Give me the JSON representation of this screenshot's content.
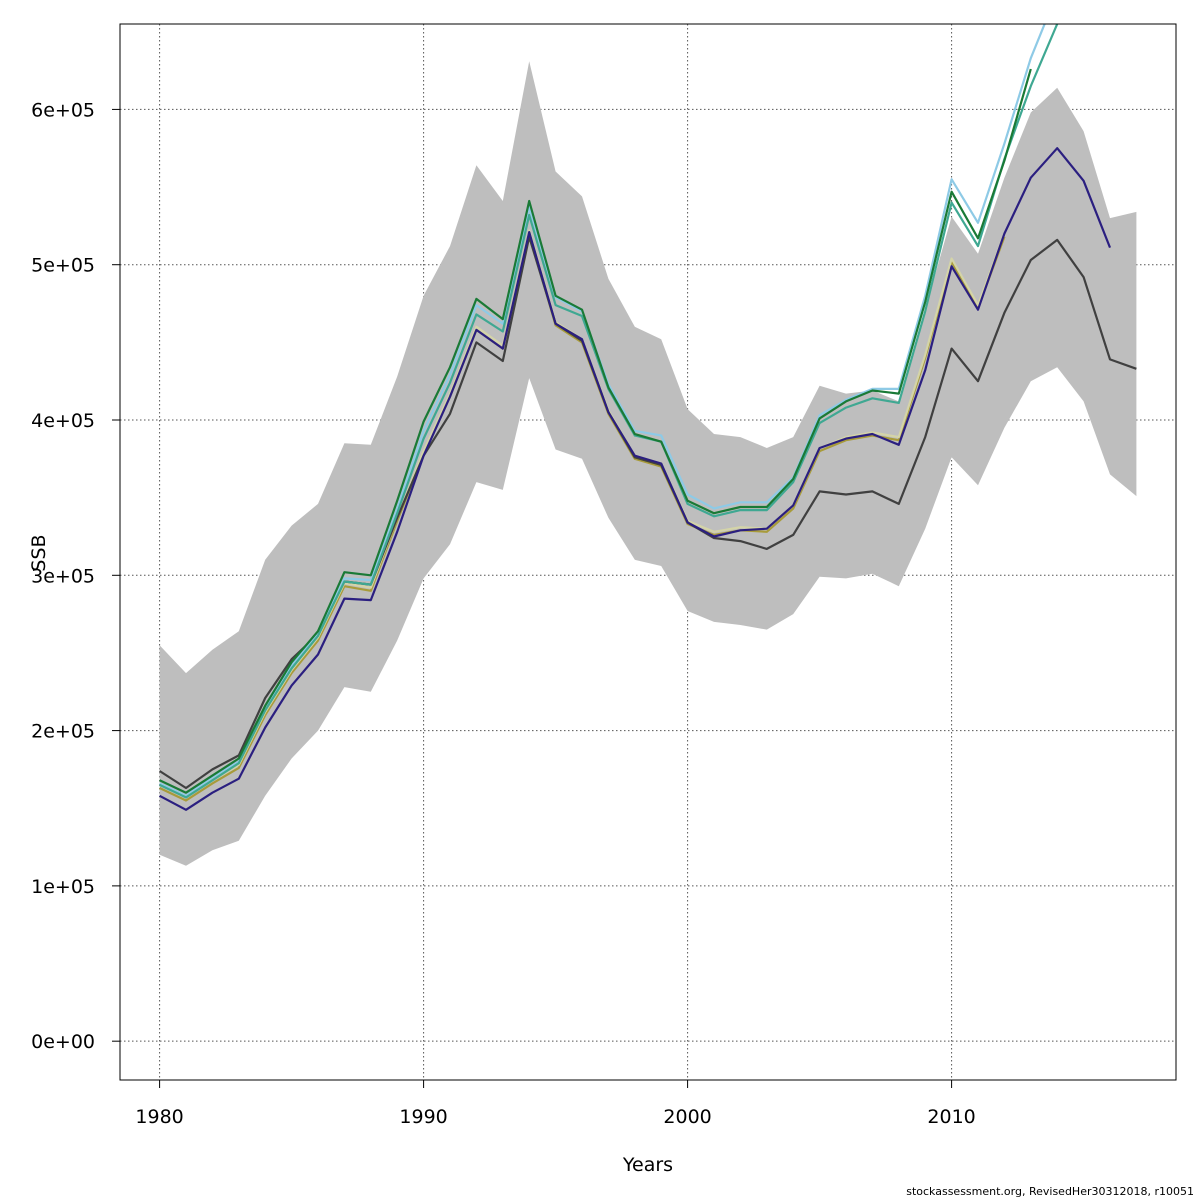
{
  "chart_data": {
    "type": "line",
    "xlabel": "Years",
    "ylabel": "SSB",
    "xlim": [
      1978.5,
      2018.5
    ],
    "ylim": [
      -25000,
      655000
    ],
    "xticks": [
      1980,
      1990,
      2000,
      2010
    ],
    "xtick_labels": [
      "1980",
      "1990",
      "2000",
      "2010"
    ],
    "yticks": [
      0,
      100000,
      200000,
      300000,
      400000,
      500000,
      600000
    ],
    "ytick_labels": [
      "0e+00",
      "1e+05",
      "2e+05",
      "3e+05",
      "4e+05",
      "5e+05",
      "6e+05"
    ],
    "grid": true,
    "band": {
      "color": "#bebebe",
      "x": [
        1980,
        1981,
        1982,
        1983,
        1984,
        1985,
        1986,
        1987,
        1988,
        1989,
        1990,
        1991,
        1992,
        1993,
        1994,
        1995,
        1996,
        1997,
        1998,
        1999,
        2000,
        2001,
        2002,
        2003,
        2004,
        2005,
        2006,
        2007,
        2008,
        2009,
        2010,
        2011,
        2012,
        2013,
        2014,
        2015,
        2016,
        2017
      ],
      "upper": [
        255000,
        237000,
        252000,
        264000,
        310000,
        332000,
        346000,
        385000,
        384000,
        428000,
        480000,
        512000,
        564000,
        541000,
        631000,
        560000,
        544000,
        491000,
        460000,
        452000,
        407000,
        391000,
        389000,
        382000,
        389000,
        422000,
        417000,
        419000,
        412000,
        471000,
        531000,
        507000,
        556000,
        598000,
        614000,
        586000,
        530000,
        534000
      ],
      "lower": [
        120000,
        113000,
        123000,
        129000,
        158000,
        182000,
        200000,
        228000,
        225000,
        258000,
        298000,
        320000,
        360000,
        355000,
        427000,
        381000,
        375000,
        337000,
        310000,
        306000,
        277000,
        270000,
        268000,
        265000,
        275000,
        299000,
        298000,
        301000,
        293000,
        330000,
        376000,
        358000,
        395000,
        425000,
        434000,
        412000,
        365000,
        351000
      ]
    },
    "series": [
      {
        "color": "#a89b3a",
        "x": [
          1980,
          1981,
          1982,
          1983,
          1984,
          1985,
          1986,
          1987,
          1988,
          1989,
          1990,
          1991,
          1992,
          1993,
          1994,
          1995,
          1996,
          1997,
          1998,
          1999,
          2000,
          2001,
          2002,
          2003,
          2004,
          2005,
          2006,
          2007,
          2008,
          2009,
          2010,
          2011,
          2012
        ],
        "values": [
          163000,
          155000,
          166000,
          176000,
          210000,
          237000,
          258000,
          293000,
          290000,
          335000,
          378000,
          415000,
          458000,
          446000,
          520000,
          461000,
          450000,
          404000,
          375000,
          370000,
          333000,
          326000,
          329000,
          328000,
          343000,
          380000,
          387000,
          390000,
          387000,
          440000,
          502000,
          472000,
          518000
        ]
      },
      {
        "color": "#d4d4a8",
        "x": [
          1980,
          1981,
          1982,
          1983,
          1984,
          1985,
          1986,
          1987,
          1988,
          1989,
          1990,
          1991,
          1992,
          1993,
          1994,
          1995,
          1996,
          1997,
          1998,
          1999,
          2000,
          2001,
          2002,
          2003,
          2004,
          2005,
          2006,
          2007,
          2008,
          2009,
          2010,
          2011,
          2012
        ],
        "values": [
          165000,
          157000,
          168000,
          178000,
          212000,
          239000,
          260000,
          295000,
          292000,
          337000,
          380000,
          417000,
          460000,
          448000,
          522000,
          463000,
          452000,
          406000,
          377000,
          372000,
          335000,
          328000,
          331000,
          330000,
          345000,
          382000,
          389000,
          392000,
          389000,
          442000,
          504000,
          474000,
          520000
        ]
      },
      {
        "color": "#404040",
        "x": [
          1980,
          1981,
          1982,
          1983,
          1984,
          1985,
          1986,
          1987,
          1988,
          1989,
          1990,
          1991,
          1992,
          1993,
          1994,
          1995,
          1996,
          1997,
          1998,
          1999,
          2000,
          2001,
          2002,
          2003,
          2004,
          2005,
          2006,
          2007,
          2008,
          2009,
          2010,
          2011,
          2012,
          2013,
          2014,
          2015,
          2016,
          2017
        ],
        "values": [
          174000,
          163000,
          175000,
          184000,
          221000,
          246000,
          262000,
          296000,
          294000,
          337000,
          377000,
          404000,
          450000,
          438000,
          518000,
          462000,
          451000,
          405000,
          376000,
          371000,
          334000,
          324000,
          322000,
          317000,
          326000,
          354000,
          352000,
          354000,
          346000,
          389000,
          446000,
          425000,
          469000,
          503000,
          516000,
          492000,
          439000,
          433000
        ]
      },
      {
        "color": "#2b1f80",
        "x": [
          1980,
          1981,
          1982,
          1983,
          1984,
          1985,
          1986,
          1987,
          1988,
          1989,
          1990,
          1991,
          1992,
          1993,
          1994,
          1995,
          1996,
          1997,
          1998,
          1999,
          2000,
          2001,
          2002,
          2003,
          2004,
          2005,
          2006,
          2007,
          2008,
          2009,
          2010,
          2011,
          2012,
          2013,
          2014,
          2015,
          2016
        ],
        "values": [
          158000,
          149000,
          160000,
          169000,
          202000,
          229000,
          249000,
          285000,
          284000,
          328000,
          377000,
          415000,
          458000,
          446000,
          521000,
          462000,
          452000,
          405000,
          377000,
          372000,
          334000,
          325000,
          329000,
          330000,
          345000,
          382000,
          388000,
          391000,
          384000,
          432000,
          499000,
          471000,
          520000,
          556000,
          575000,
          554000,
          511000
        ]
      },
      {
        "color": "#8ecae6",
        "x": [
          1980,
          1981,
          1982,
          1983,
          1984,
          1985,
          1986,
          1987,
          1988,
          1989,
          1990,
          1991,
          1992,
          1993,
          1994,
          1995,
          1996,
          1997,
          1998,
          1999,
          2000,
          2001,
          2002,
          2003,
          2004,
          2005,
          2006,
          2007,
          2008,
          2009,
          2010,
          2011,
          2012,
          2013,
          2014
        ],
        "values": [
          166000,
          158000,
          170000,
          180000,
          215000,
          242000,
          262000,
          298000,
          297000,
          343000,
          393000,
          429000,
          474000,
          462000,
          537000,
          479000,
          470000,
          423000,
          393000,
          390000,
          352000,
          343000,
          347000,
          347000,
          363000,
          403000,
          413000,
          420000,
          420000,
          480000,
          555000,
          527000,
          578000,
          633000,
          675000
        ]
      },
      {
        "color": "#3fa892",
        "x": [
          1980,
          1981,
          1982,
          1983,
          1984,
          1985,
          1986,
          1987,
          1988,
          1989,
          1990,
          1991,
          1992,
          1993,
          1994,
          1995,
          1996,
          1997,
          1998,
          1999,
          2000,
          2001,
          2002,
          2003,
          2004,
          2005,
          2006,
          2007,
          2008,
          2009,
          2010,
          2011,
          2012,
          2013,
          2014
        ],
        "values": [
          165000,
          157000,
          168000,
          179000,
          213000,
          240000,
          261000,
          296000,
          294000,
          340000,
          388000,
          424000,
          468000,
          457000,
          532000,
          474000,
          467000,
          420000,
          390000,
          386000,
          346000,
          338000,
          342000,
          342000,
          360000,
          398000,
          408000,
          414000,
          411000,
          470000,
          540000,
          512000,
          568000,
          615000,
          655000
        ]
      },
      {
        "color": "#1a7a36",
        "x": [
          1980,
          1981,
          1982,
          1983,
          1984,
          1985,
          1986,
          1987,
          1988,
          1989,
          1990,
          1991,
          1992,
          1993,
          1994,
          1995,
          1996,
          1997,
          1998,
          1999,
          2000,
          2001,
          2002,
          2003,
          2004,
          2005,
          2006,
          2007,
          2008,
          2009,
          2010,
          2011,
          2012,
          2013
        ],
        "values": [
          168000,
          160000,
          171000,
          182000,
          216000,
          244000,
          264000,
          302000,
          300000,
          348000,
          399000,
          434000,
          478000,
          465000,
          541000,
          480000,
          471000,
          421000,
          391000,
          386000,
          348000,
          340000,
          344000,
          344000,
          362000,
          401000,
          412000,
          419000,
          417000,
          476000,
          547000,
          517000,
          567000,
          626000
        ]
      }
    ]
  },
  "footer": "stockassessment.org, RevisedHer30312018, r10051"
}
